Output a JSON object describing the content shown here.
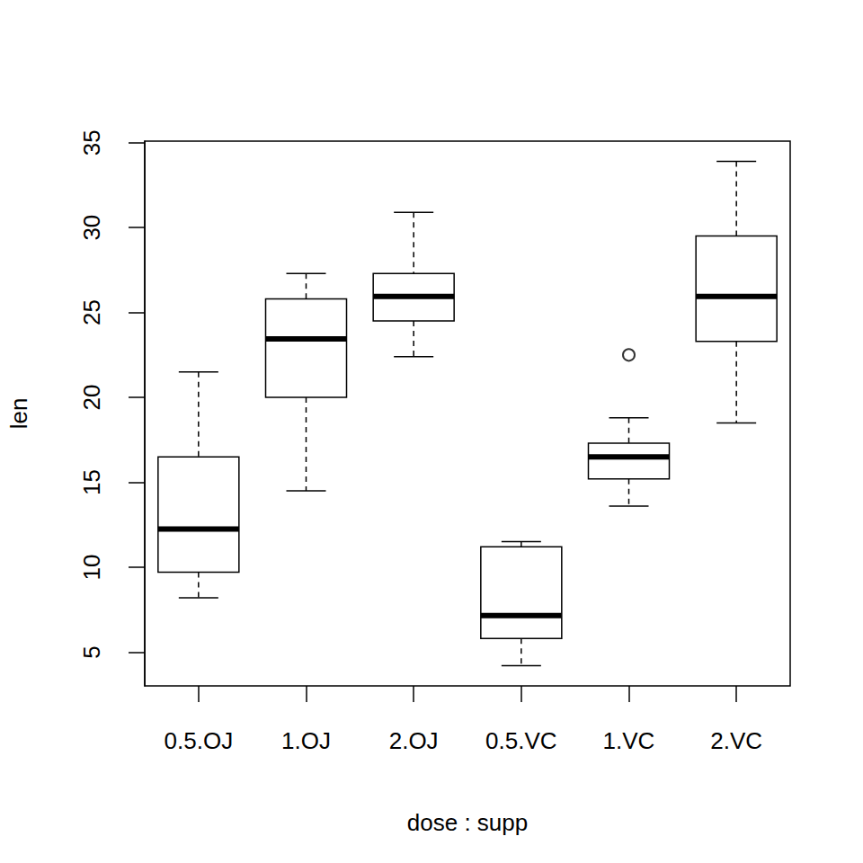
{
  "chart_data": {
    "type": "boxplot",
    "xlabel": "dose : supp",
    "ylabel": "len",
    "categories": [
      "0.5.OJ",
      "1.OJ",
      "2.OJ",
      "0.5.VC",
      "1.VC",
      "2.VC"
    ],
    "values": [
      [
        8.2,
        9.7,
        12.25,
        16.5,
        21.5
      ],
      [
        14.5,
        20.0,
        23.45,
        25.8,
        27.3
      ],
      [
        22.4,
        24.5,
        25.95,
        27.3,
        30.9
      ],
      [
        4.2,
        5.8,
        7.15,
        11.2,
        11.5
      ],
      [
        13.6,
        15.2,
        16.5,
        17.3,
        18.8
      ],
      [
        18.5,
        23.3,
        25.95,
        29.5,
        33.9
      ]
    ],
    "outliers": [
      {
        "category": "1.VC",
        "value": 22.5
      }
    ],
    "color": "#000000",
    "ylim": [
      3.01,
      35.09
    ],
    "yticks": [
      5,
      10,
      15,
      20,
      25,
      30,
      35
    ],
    "grid": false
  }
}
